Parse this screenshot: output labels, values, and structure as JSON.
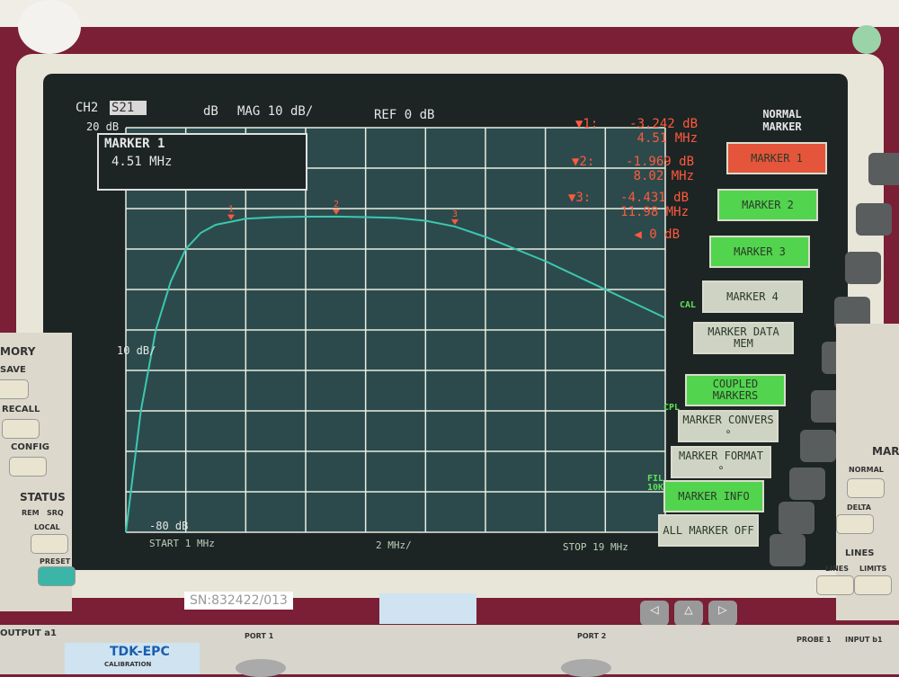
{
  "header": {
    "channel": "CH2",
    "param": "S21",
    "unit": "dB",
    "format": "MAG 10 dB/",
    "ref": "REF 0 dB"
  },
  "marker_box": {
    "title": "MARKER 1",
    "value": "4.51 MHz"
  },
  "markers": [
    {
      "label": "▼1:",
      "level": "-3.242 dB",
      "freq": "4.51 MHz"
    },
    {
      "label": "▼2:",
      "level": "-1.969 dB",
      "freq": "8.02 MHz"
    },
    {
      "label": "▼3:",
      "level": "-4.431 dB",
      "freq": "11.98 MHz"
    }
  ],
  "ref_marker": "◀ 0 dB",
  "scale_labels": {
    "top": "20 dB",
    "mid": "10 dB/",
    "bottom": "-80 dB"
  },
  "footer": {
    "start": "START  1 MHz",
    "span": "2 MHz/",
    "stop": "STOP 19 MHz"
  },
  "softkeys": {
    "title": "NORMAL MARKER",
    "items": [
      {
        "label": "MARKER 1",
        "state": "red"
      },
      {
        "label": "MARKER 2",
        "state": "green"
      },
      {
        "label": "MARKER 3",
        "state": "green"
      },
      {
        "label": "MARKER 4",
        "state": "grey"
      },
      {
        "label": "MARKER DATA MEM",
        "state": "grey"
      },
      {
        "label": "COUPLED MARKERS",
        "state": "green"
      },
      {
        "label": "MARKER CONVERS ∘",
        "state": "grey"
      },
      {
        "label": "MARKER FORMAT ∘",
        "state": "grey"
      },
      {
        "label": "MARKER INFO",
        "state": "green"
      },
      {
        "label": "ALL MARKER OFF",
        "state": "grey"
      }
    ]
  },
  "side_flags": {
    "cal": "CAL",
    "cpl": "CPL",
    "fil": "FIL 10K"
  },
  "panel_left": {
    "memory": "MORY",
    "save": "SAVE",
    "recall": "RECALL",
    "config": "CONFIG",
    "status": "STATUS",
    "rem": "REM",
    "srq": "SRQ",
    "local": "LOCAL",
    "preset": "PRESET",
    "output": "OUTPUT a1"
  },
  "panel_right": {
    "marker": "MARK",
    "normal": "NORMAL",
    "delta": "DELTA",
    "lines_title": "LINES",
    "lines": "LINES",
    "limits": "LIMITS",
    "probe": "PROBE 1",
    "input": "INPUT b1"
  },
  "labels": {
    "serial": "SN:832422/013",
    "port1": "PORT 1",
    "port2": "PORT 2",
    "brand": "TDK-EPC",
    "calibration": "CALIBRATION"
  },
  "colors": {
    "trace": "#3cc8b0",
    "grid": "#e8eee0",
    "marker_text": "#ff5a3c",
    "active_key": "#e4553b",
    "on_key": "#52d44e"
  },
  "chart_data": {
    "type": "line",
    "title": "",
    "xlabel": "",
    "ylabel": "",
    "xlim": [
      1,
      19
    ],
    "ylim": [
      -80,
      20
    ],
    "x_unit": "MHz",
    "y_unit": "dB",
    "grid": true,
    "series": [
      {
        "x": [
          1,
          1.5,
          2,
          2.5,
          3,
          3.5,
          4,
          4.51,
          5,
          6,
          7,
          8.02,
          9,
          10,
          11,
          11.98,
          13,
          14,
          15,
          16,
          17,
          18,
          19
        ],
        "y": [
          -80,
          -50,
          -30,
          -18,
          -10,
          -6,
          -4,
          -3.242,
          -2.5,
          -2.1,
          -2.0,
          -1.969,
          -2.1,
          -2.3,
          -3,
          -4.431,
          -7,
          -10,
          -13,
          -16.5,
          -20,
          -23.5,
          -27
        ]
      }
    ],
    "markers": [
      {
        "id": 1,
        "x": 4.51,
        "y": -3.242
      },
      {
        "id": 2,
        "x": 8.02,
        "y": -1.969
      },
      {
        "id": 3,
        "x": 11.98,
        "y": -4.431
      }
    ]
  }
}
